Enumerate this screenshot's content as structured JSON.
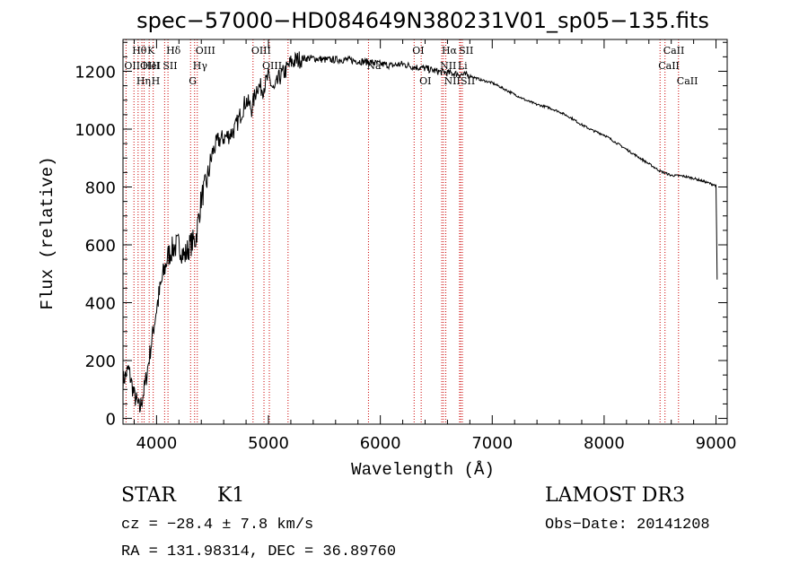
{
  "chart_data": {
    "type": "line",
    "title": "spec−57000−HD084649N380231V01_sp05−135.fits",
    "xlabel": "Wavelength (Å)",
    "ylabel": "Flux (relative)",
    "xlim": [
      3700,
      9100
    ],
    "ylim": [
      -20,
      1310
    ],
    "xticks": [
      4000,
      5000,
      6000,
      7000,
      8000,
      9000
    ],
    "xtick_labels": [
      "4000",
      "5000",
      "6000",
      "7000",
      "8000",
      "9000"
    ],
    "yticks": [
      0,
      200,
      400,
      600,
      800,
      1000,
      1200
    ],
    "ytick_labels": [
      "0",
      "200",
      "400",
      "600",
      "800",
      "1000",
      "1200"
    ],
    "series": [
      {
        "name": "spectrum",
        "color": "#000000",
        "x": [
          3700,
          3750,
          3800,
          3850,
          3900,
          3950,
          4000,
          4050,
          4100,
          4150,
          4200,
          4250,
          4300,
          4350,
          4400,
          4450,
          4500,
          4550,
          4600,
          4650,
          4700,
          4750,
          4800,
          4850,
          4900,
          4950,
          5000,
          5050,
          5100,
          5150,
          5200,
          5300,
          5400,
          5500,
          5600,
          5700,
          5800,
          5900,
          6000,
          6100,
          6200,
          6300,
          6400,
          6500,
          6600,
          6700,
          6800,
          6900,
          7000,
          7100,
          7200,
          7300,
          7400,
          7500,
          7600,
          7700,
          7800,
          7900,
          8000,
          8100,
          8200,
          8300,
          8400,
          8500,
          8600,
          8700,
          8800,
          8900,
          9000,
          9010
        ],
        "y": [
          130,
          170,
          80,
          30,
          120,
          250,
          380,
          480,
          560,
          590,
          600,
          560,
          600,
          620,
          760,
          820,
          920,
          960,
          970,
          980,
          1000,
          1050,
          1100,
          1070,
          1150,
          1140,
          1180,
          1130,
          1180,
          1200,
          1230,
          1245,
          1245,
          1240,
          1240,
          1240,
          1235,
          1232,
          1225,
          1220,
          1225,
          1215,
          1210,
          1200,
          1195,
          1190,
          1185,
          1170,
          1160,
          1140,
          1120,
          1100,
          1085,
          1075,
          1060,
          1040,
          1015,
          995,
          980,
          955,
          930,
          905,
          880,
          855,
          840,
          838,
          830,
          818,
          805,
          480
        ]
      }
    ],
    "line_markers": [
      {
        "x": 3727,
        "label": "OII",
        "row": 2
      },
      {
        "x": 3798,
        "label": "Hθ",
        "row": 1
      },
      {
        "x": 3835,
        "label": "Hη",
        "row": 3
      },
      {
        "x": 3869,
        "label": "OIII",
        "row": 2
      },
      {
        "x": 3889,
        "label": "HeI",
        "row": 2
      },
      {
        "x": 3934,
        "label": "K",
        "row": 1
      },
      {
        "x": 3970,
        "label": "H",
        "row": 3
      },
      {
        "x": 4072,
        "label": "SII",
        "row": 2
      },
      {
        "x": 4102,
        "label": "Hδ",
        "row": 1
      },
      {
        "x": 4304,
        "label": "G",
        "row": 3
      },
      {
        "x": 4340,
        "label": "Hγ",
        "row": 2
      },
      {
        "x": 4364,
        "label": "OIII",
        "row": 1
      },
      {
        "x": 4862,
        "label": "OIII",
        "row": 1
      },
      {
        "x": 4960,
        "label": "OIII",
        "row": 2
      },
      {
        "x": 5008,
        "label": "",
        "row": 0
      },
      {
        "x": 5175,
        "label": "",
        "row": 0
      },
      {
        "x": 5894,
        "label": "Na",
        "row": 2
      },
      {
        "x": 6302,
        "label": "OI",
        "row": 1
      },
      {
        "x": 6365,
        "label": "OI",
        "row": 3
      },
      {
        "x": 6549,
        "label": "NII",
        "row": 2
      },
      {
        "x": 6564,
        "label": "Hα",
        "row": 1
      },
      {
        "x": 6585,
        "label": "NII",
        "row": 3
      },
      {
        "x": 6708,
        "label": "Li",
        "row": 2
      },
      {
        "x": 6718,
        "label": "SII",
        "row": 1
      },
      {
        "x": 6733,
        "label": "SII",
        "row": 3
      },
      {
        "x": 8500,
        "label": "CaII",
        "row": 2
      },
      {
        "x": 8544,
        "label": "CaII",
        "row": 1
      },
      {
        "x": 8665,
        "label": "CaII",
        "row": 3
      }
    ],
    "marker_color": "#cc0000"
  },
  "info": {
    "object_class": "STAR",
    "subclass": "K1",
    "survey": "LAMOST DR3",
    "cz": "cz = −28.4 ± 7.8 km/s",
    "obs_date": "Obs−Date: 20141208",
    "radec": "RA = 131.98314, DEC =  36.89760"
  }
}
